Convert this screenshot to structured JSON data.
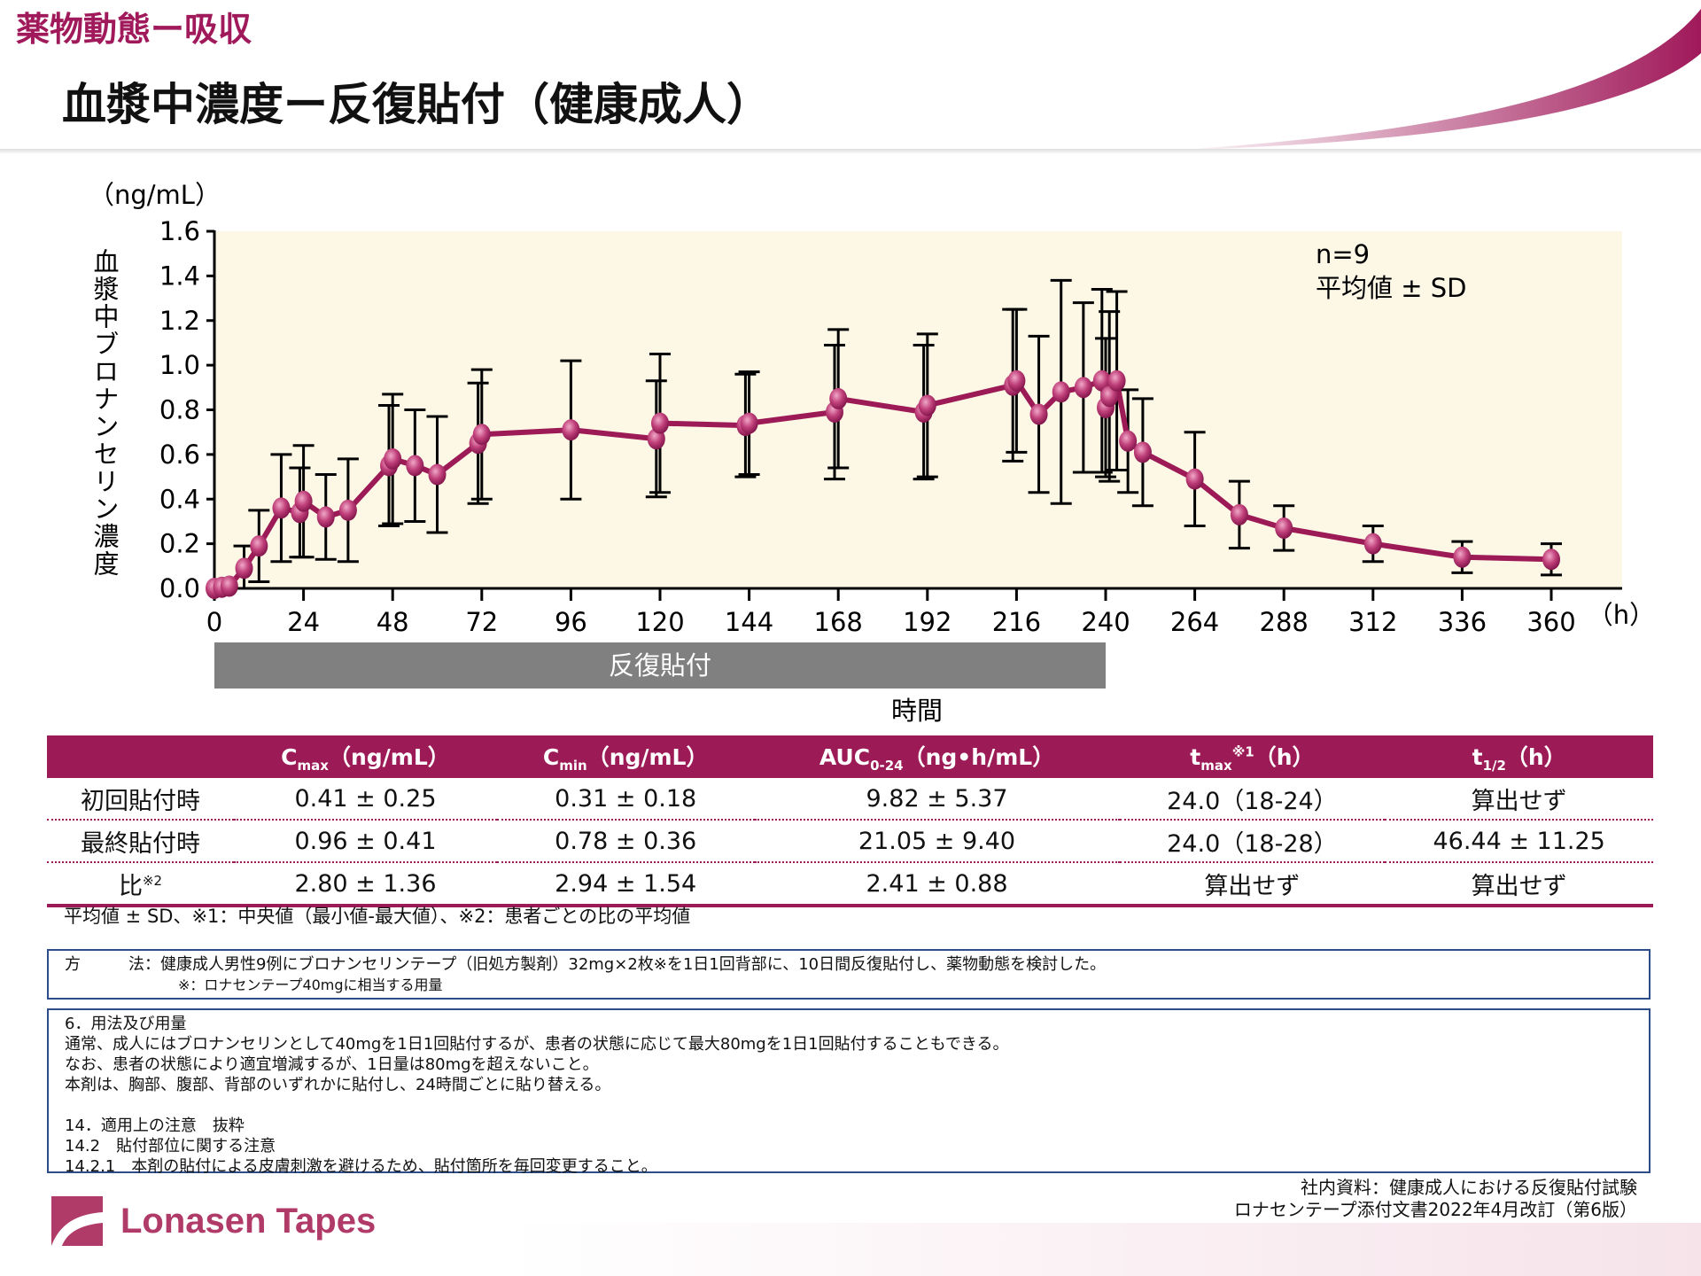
{
  "header": {
    "section": "薬物動態ー吸収",
    "title": "血漿中濃度ー反復貼付（健康成人）"
  },
  "chart_data": {
    "type": "line",
    "ylabel": "血漿中ブロナンセリン濃度",
    "yunit": "（ng/mL）",
    "xlabel": "時間",
    "xunit": "（h）",
    "ylim": [
      0,
      1.6
    ],
    "xlim": [
      0,
      360
    ],
    "yticks": [
      "0.0",
      "0.2",
      "0.4",
      "0.6",
      "0.8",
      "1.0",
      "1.2",
      "1.4",
      "1.6"
    ],
    "xticks": [
      "0",
      "24",
      "48",
      "72",
      "96",
      "120",
      "144",
      "168",
      "192",
      "216",
      "240",
      "264",
      "288",
      "312",
      "336",
      "360"
    ],
    "annotation": [
      "n=9",
      "平均値 ± SD"
    ],
    "dosing_bar": {
      "label": "反復貼付",
      "from": 0,
      "to": 240
    },
    "colors": {
      "line": "#9c1a56",
      "background": "#fdf7e6",
      "dosing_bar": "#808080"
    },
    "points": [
      {
        "x": 0,
        "y": 0,
        "sd": 0
      },
      {
        "x": 2,
        "y": 0.005,
        "sd": 0
      },
      {
        "x": 4,
        "y": 0.01,
        "sd": 0.01
      },
      {
        "x": 8,
        "y": 0.09,
        "sd": 0.1
      },
      {
        "x": 12,
        "y": 0.19,
        "sd": 0.16
      },
      {
        "x": 18,
        "y": 0.36,
        "sd": 0.24
      },
      {
        "x": 23,
        "y": 0.34,
        "sd": 0.2
      },
      {
        "x": 24,
        "y": 0.39,
        "sd": 0.25
      },
      {
        "x": 30,
        "y": 0.32,
        "sd": 0.19
      },
      {
        "x": 36,
        "y": 0.35,
        "sd": 0.23
      },
      {
        "x": 47,
        "y": 0.55,
        "sd": 0.27
      },
      {
        "x": 48,
        "y": 0.58,
        "sd": 0.29
      },
      {
        "x": 54,
        "y": 0.55,
        "sd": 0.25
      },
      {
        "x": 60,
        "y": 0.51,
        "sd": 0.26
      },
      {
        "x": 71,
        "y": 0.65,
        "sd": 0.27
      },
      {
        "x": 72,
        "y": 0.69,
        "sd": 0.29
      },
      {
        "x": 96,
        "y": 0.71,
        "sd": 0.31
      },
      {
        "x": 119,
        "y": 0.67,
        "sd": 0.26
      },
      {
        "x": 120,
        "y": 0.74,
        "sd": 0.31
      },
      {
        "x": 143,
        "y": 0.73,
        "sd": 0.23
      },
      {
        "x": 144,
        "y": 0.74,
        "sd": 0.23
      },
      {
        "x": 167,
        "y": 0.79,
        "sd": 0.3
      },
      {
        "x": 168,
        "y": 0.85,
        "sd": 0.31
      },
      {
        "x": 191,
        "y": 0.79,
        "sd": 0.3
      },
      {
        "x": 192,
        "y": 0.82,
        "sd": 0.32
      },
      {
        "x": 215,
        "y": 0.91,
        "sd": 0.34
      },
      {
        "x": 216,
        "y": 0.93,
        "sd": 0.32
      },
      {
        "x": 222,
        "y": 0.78,
        "sd": 0.35
      },
      {
        "x": 228,
        "y": 0.88,
        "sd": 0.5
      },
      {
        "x": 234,
        "y": 0.9,
        "sd": 0.38
      },
      {
        "x": 239,
        "y": 0.93,
        "sd": 0.41
      },
      {
        "x": 240,
        "y": 0.81,
        "sd": 0.31
      },
      {
        "x": 241,
        "y": 0.86,
        "sd": 0.38
      },
      {
        "x": 243,
        "y": 0.93,
        "sd": 0.4
      },
      {
        "x": 246,
        "y": 0.66,
        "sd": 0.23
      },
      {
        "x": 250,
        "y": 0.61,
        "sd": 0.24
      },
      {
        "x": 264,
        "y": 0.49,
        "sd": 0.21
      },
      {
        "x": 276,
        "y": 0.33,
        "sd": 0.15
      },
      {
        "x": 288,
        "y": 0.27,
        "sd": 0.1
      },
      {
        "x": 312,
        "y": 0.2,
        "sd": 0.08
      },
      {
        "x": 336,
        "y": 0.14,
        "sd": 0.07
      },
      {
        "x": 360,
        "y": 0.13,
        "sd": 0.07
      }
    ]
  },
  "table": {
    "headers": [
      {
        "main": "",
        "sub": "",
        "unit": ""
      },
      {
        "main": "C",
        "sub": "max",
        "unit": "（ng/mL）"
      },
      {
        "main": "C",
        "sub": "min",
        "unit": "（ng/mL）"
      },
      {
        "main": "AUC",
        "sub": "0-24",
        "unit": "（ng•h/mL）"
      },
      {
        "main": "t",
        "sub": "max",
        "sup": "※1",
        "unit": "（h）"
      },
      {
        "main": "t",
        "sub": "1/2",
        "unit": "（h）"
      }
    ],
    "rows": [
      {
        "label": "初回貼付時",
        "sup": "",
        "cells": [
          "0.41 ± 0.25",
          "0.31 ± 0.18",
          "9.82 ± 5.37",
          "24.0（18-24）",
          "算出せず"
        ]
      },
      {
        "label": "最終貼付時",
        "sup": "",
        "cells": [
          "0.96 ± 0.41",
          "0.78 ± 0.36",
          "21.05 ± 9.40",
          "24.0（18-28）",
          "46.44 ± 11.25"
        ]
      },
      {
        "label": "比",
        "sup": "※2",
        "cells": [
          "2.80 ± 1.36",
          "2.94 ± 1.54",
          "2.41 ± 0.88",
          "算出せず",
          "算出せず"
        ]
      }
    ],
    "footnote": "平均値 ± SD、※1：中央値（最小値-最大値）、※2：患者ごとの比の平均値"
  },
  "method": {
    "line1": "方　　　法：健康成人男性9例にブロナンセリンテープ（旧処方製剤）32mg×2枚※を1日1回背部に、10日間反復貼付し、薬物動態を検討した。",
    "line2": "※：ロナセンテープ40mgに相当する用量"
  },
  "dosage": [
    "6．用法及び用量",
    "通常、成人にはブロナンセリンとして40mgを1日1回貼付するが、患者の状態に応じて最大80mgを1日1回貼付することもできる。",
    "なお、患者の状態により適宜増減するが、1日量は80mgを超えないこと。",
    "本剤は、胸部、腹部、背部のいずれかに貼付し、24時間ごとに貼り替える。",
    "",
    "14．適用上の注意　抜粋",
    "14.2　貼付部位に関する注意",
    "14.2.1　本剤の貼付による皮膚刺激を避けるため、貼付箇所を毎回変更すること。"
  ],
  "source": [
    "社内資料：健康成人における反復貼付試験",
    "ロナセンテープ添付文書2022年4月改訂（第6版）"
  ],
  "logo": {
    "text": "Lonasen Tapes",
    "color": "#b03a68"
  }
}
